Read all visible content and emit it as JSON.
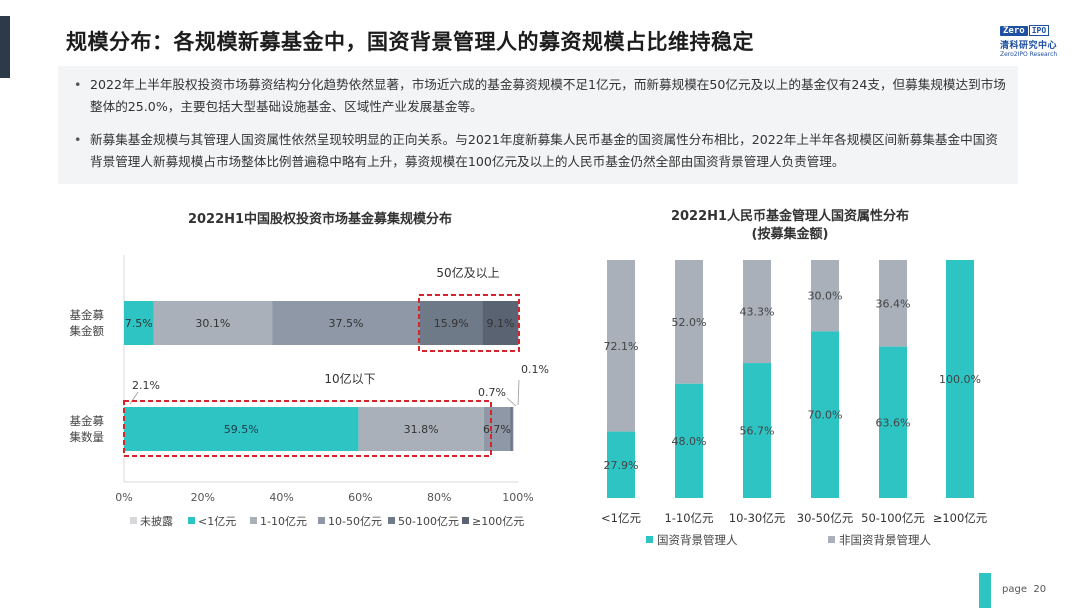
{
  "header": {
    "title": "规模分布：各规模新募基金中，国资背景管理人的募资规模占比维持稳定",
    "logo": {
      "zero": "Zero",
      "ipo": "IPO",
      "cn": "清科研究中心",
      "en": "Zero2IPO Research"
    }
  },
  "notes": {
    "bullet1": "2022年上半年股权投资市场募资结构分化趋势依然显著，市场近六成的基金募资规模不足1亿元，而新募规模在50亿元及以上的基金仅有24支，但募集规模达到市场整体的25.0%，主要包括大型基础设施基金、区域性产业发展基金等。",
    "bullet2": "新募集基金规模与其管理人国资属性依然呈现较明显的正向关系。与2021年度新募集人民币基金的国资属性分布相比，2022年上半年各规模区间新募集基金中国资背景管理人新募规模占市场整体比例普遍稳中略有上升，募资规模在100亿元及以上的人民币基金仍然全部由国资背景管理人负责管理。"
  },
  "colors": {
    "undisclosed": "#d6d8db",
    "lt1": "#2ec4c4",
    "r1_10": "#a9b0ba",
    "r10_50": "#8e98a6",
    "r50_100": "#6f7a89",
    "ge100": "#596372",
    "state": "#2ec4c4",
    "nonstate": "#a9b0ba",
    "highlight": "#d9232a"
  },
  "chart_data": [
    {
      "type": "bar",
      "orientation": "horizontal",
      "stacked": true,
      "title": "2022H1中国股权投资市场基金募集规模分布",
      "categories": [
        "基金募集金额",
        "基金募集数量"
      ],
      "category_labels": [
        [
          "基金募",
          "集金额"
        ],
        [
          "基金募",
          "集数量"
        ]
      ],
      "series": [
        {
          "name": "未披露",
          "values": [
            0,
            0
          ],
          "labels": [
            "",
            ""
          ]
        },
        {
          "name": "<1亿元",
          "values": [
            7.5,
            59.5
          ],
          "labels": [
            "7.5%",
            "59.5%"
          ]
        },
        {
          "name": "1-10亿元",
          "values": [
            30.1,
            31.8
          ],
          "labels": [
            "30.1%",
            "31.8%"
          ]
        },
        {
          "name": "10-50亿元",
          "values": [
            37.5,
            6.7
          ],
          "labels": [
            "37.5%",
            "6.7%"
          ]
        },
        {
          "name": "50-100亿元",
          "values": [
            15.9,
            0.7
          ],
          "labels": [
            "15.9%",
            "0.7%"
          ]
        },
        {
          "name": "≥100亿元",
          "values": [
            9.1,
            0.1
          ],
          "labels": [
            "9.1%",
            "0.1%"
          ]
        }
      ],
      "xlim": [
        0,
        100
      ],
      "xticks": [
        "0%",
        "20%",
        "40%",
        "60%",
        "80%",
        "100%"
      ],
      "annotations": {
        "top_box": "50亿及以上",
        "bottom_box": "10亿以下",
        "small_left": "2.1%"
      },
      "legend_position": "bottom"
    },
    {
      "type": "bar",
      "orientation": "vertical",
      "stacked": true,
      "title": "2022H1人民币基金管理人国资属性分布",
      "subtitle": "(按募集金额)",
      "categories": [
        "<1亿元",
        "1-10亿元",
        "10-30亿元",
        "30-50亿元",
        "50-100亿元",
        "≥100亿元"
      ],
      "series": [
        {
          "name": "国资背景管理人",
          "values": [
            27.9,
            48.0,
            56.7,
            70.0,
            63.6,
            100.0
          ],
          "labels": [
            "27.9%",
            "48.0%",
            "56.7%",
            "70.0%",
            "63.6%",
            "100.0%"
          ]
        },
        {
          "name": "非国资背景管理人",
          "values": [
            72.1,
            52.0,
            43.3,
            30.0,
            36.4,
            0
          ],
          "labels": [
            "72.1%",
            "52.0%",
            "43.3%",
            "30.0%",
            "36.4%",
            ""
          ]
        }
      ],
      "ylim": [
        0,
        100
      ],
      "legend_position": "bottom"
    }
  ],
  "footer": {
    "page_label": "page",
    "page_number": "20"
  }
}
